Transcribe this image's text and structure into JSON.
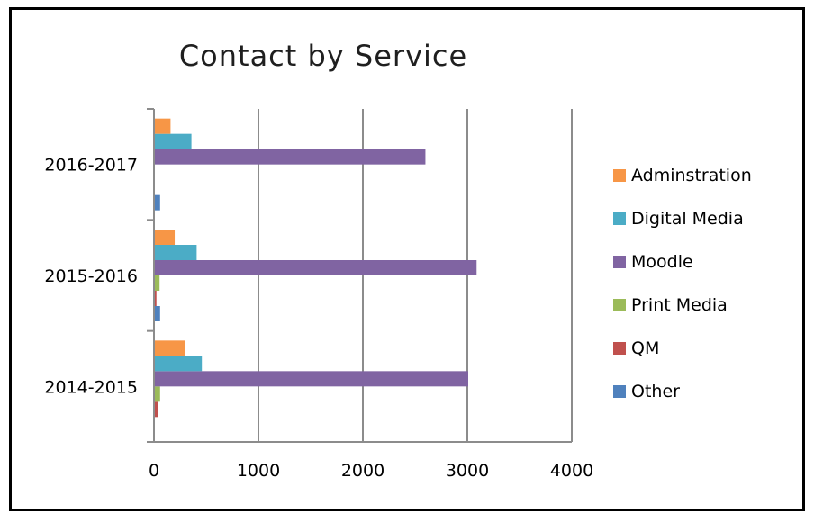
{
  "chart_data": {
    "type": "bar",
    "orientation": "horizontal",
    "title": "Contact by Service",
    "xlabel": "",
    "ylabel": "",
    "categories": [
      "2014-2015",
      "2015-2016",
      "2016-2017"
    ],
    "xlim": [
      0,
      4000
    ],
    "xticks": [
      "0",
      "1000",
      "2000",
      "3000",
      "4000"
    ],
    "grid": "vertical",
    "legend": "right",
    "series": [
      {
        "name": "Other",
        "color": "#4F81BD",
        "values": [
          0,
          50,
          50
        ]
      },
      {
        "name": "QM",
        "color": "#C0504D",
        "values": [
          30,
          15,
          0
        ]
      },
      {
        "name": "Print Media",
        "color": "#9BBB59",
        "values": [
          50,
          45,
          0
        ]
      },
      {
        "name": "Moodle",
        "color": "#8064A2",
        "values": [
          3000,
          3080,
          2590
        ]
      },
      {
        "name": "Digital Media",
        "color": "#4BACC6",
        "values": [
          450,
          400,
          350
        ]
      },
      {
        "name": "Adminstration",
        "color": "#F79646",
        "values": [
          290,
          190,
          150
        ]
      }
    ]
  }
}
